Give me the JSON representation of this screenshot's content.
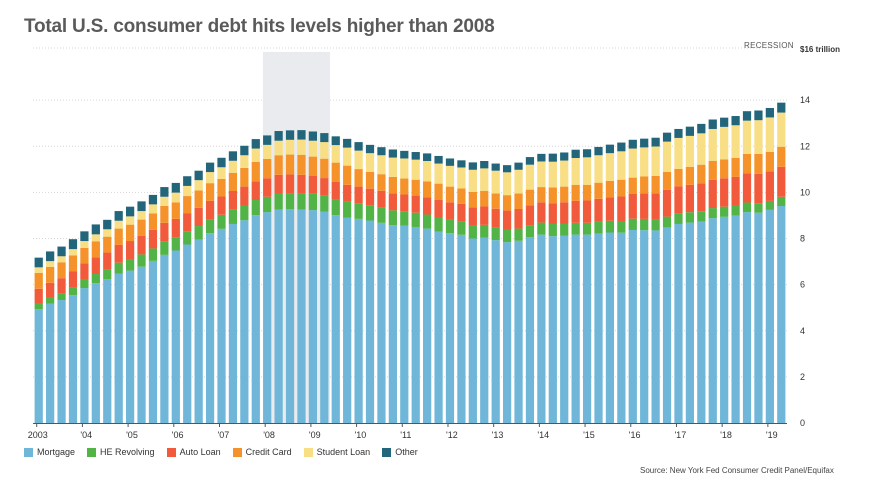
{
  "chart_data": {
    "type": "bar",
    "stacked": true,
    "title": "Total U.S. consumer debt hits levels higher than 2008",
    "recession_label": "RECESSION",
    "recession_range": [
      "2008Q1",
      "2009Q2"
    ],
    "y_unit_label": "$16 trillion",
    "ylim": [
      0,
      16
    ],
    "y_ticks": [
      0,
      2,
      4,
      6,
      8,
      10,
      12,
      14
    ],
    "grid": true,
    "legend_position": "bottom",
    "x_tick_labels": [
      "2003",
      "'04",
      "'05",
      "'06",
      "'07",
      "'08",
      "'09",
      "'10",
      "'11",
      "'12",
      "'13",
      "'14",
      "'15",
      "'16",
      "'17",
      "'18",
      "'19"
    ],
    "source": "Source: New York Fed Consumer Credit Panel/Equifax",
    "categories": [
      "2003Q1",
      "2003Q2",
      "2003Q3",
      "2003Q4",
      "2004Q1",
      "2004Q2",
      "2004Q3",
      "2004Q4",
      "2005Q1",
      "2005Q2",
      "2005Q3",
      "2005Q4",
      "2006Q1",
      "2006Q2",
      "2006Q3",
      "2006Q4",
      "2007Q1",
      "2007Q2",
      "2007Q3",
      "2007Q4",
      "2008Q1",
      "2008Q2",
      "2008Q3",
      "2008Q4",
      "2009Q1",
      "2009Q2",
      "2009Q3",
      "2009Q4",
      "2010Q1",
      "2010Q2",
      "2010Q3",
      "2010Q4",
      "2011Q1",
      "2011Q2",
      "2011Q3",
      "2011Q4",
      "2012Q1",
      "2012Q2",
      "2012Q3",
      "2012Q4",
      "2013Q1",
      "2013Q2",
      "2013Q3",
      "2013Q4",
      "2014Q1",
      "2014Q2",
      "2014Q3",
      "2014Q4",
      "2015Q1",
      "2015Q2",
      "2015Q3",
      "2015Q4",
      "2016Q1",
      "2016Q2",
      "2016Q3",
      "2016Q4",
      "2017Q1",
      "2017Q2",
      "2017Q3",
      "2017Q4",
      "2018Q1",
      "2018Q2",
      "2018Q3",
      "2018Q4",
      "2019Q1",
      "2019Q2"
    ],
    "series": [
      {
        "name": "Mortgage",
        "color": "#6fb6d8",
        "values": [
          4.94,
          5.18,
          5.33,
          5.54,
          5.85,
          6.06,
          6.23,
          6.48,
          6.61,
          6.78,
          7.03,
          7.29,
          7.48,
          7.74,
          7.95,
          8.23,
          8.42,
          8.63,
          8.79,
          9.01,
          9.14,
          9.26,
          9.27,
          9.26,
          9.23,
          9.17,
          9.01,
          8.91,
          8.85,
          8.78,
          8.68,
          8.58,
          8.56,
          8.5,
          8.43,
          8.3,
          8.23,
          8.16,
          8.0,
          8.03,
          7.93,
          7.84,
          7.9,
          8.05,
          8.17,
          8.1,
          8.13,
          8.17,
          8.17,
          8.21,
          8.26,
          8.25,
          8.37,
          8.36,
          8.35,
          8.48,
          8.63,
          8.69,
          8.74,
          8.88,
          8.94,
          9.0,
          9.14,
          9.12,
          9.24,
          9.41
        ]
      },
      {
        "name": "HE Revolving",
        "color": "#52b447",
        "values": [
          0.24,
          0.26,
          0.29,
          0.33,
          0.37,
          0.4,
          0.43,
          0.47,
          0.5,
          0.53,
          0.54,
          0.57,
          0.58,
          0.58,
          0.59,
          0.6,
          0.61,
          0.62,
          0.64,
          0.66,
          0.67,
          0.69,
          0.7,
          0.71,
          0.71,
          0.71,
          0.7,
          0.69,
          0.68,
          0.66,
          0.65,
          0.64,
          0.62,
          0.62,
          0.61,
          0.61,
          0.59,
          0.57,
          0.56,
          0.56,
          0.54,
          0.53,
          0.53,
          0.53,
          0.52,
          0.53,
          0.52,
          0.51,
          0.51,
          0.51,
          0.51,
          0.51,
          0.49,
          0.49,
          0.47,
          0.47,
          0.46,
          0.45,
          0.44,
          0.44,
          0.44,
          0.43,
          0.42,
          0.41,
          0.39,
          0.4
        ]
      },
      {
        "name": "Auto Loan",
        "color": "#f15a3a",
        "values": [
          0.64,
          0.64,
          0.66,
          0.7,
          0.7,
          0.72,
          0.73,
          0.77,
          0.78,
          0.8,
          0.81,
          0.82,
          0.79,
          0.78,
          0.79,
          0.8,
          0.79,
          0.81,
          0.82,
          0.81,
          0.8,
          0.81,
          0.81,
          0.79,
          0.77,
          0.74,
          0.74,
          0.73,
          0.72,
          0.72,
          0.74,
          0.74,
          0.73,
          0.74,
          0.75,
          0.76,
          0.75,
          0.77,
          0.79,
          0.8,
          0.82,
          0.84,
          0.85,
          0.86,
          0.88,
          0.9,
          0.92,
          0.95,
          0.97,
          1.0,
          1.02,
          1.06,
          1.07,
          1.11,
          1.14,
          1.16,
          1.17,
          1.19,
          1.21,
          1.22,
          1.23,
          1.24,
          1.27,
          1.27,
          1.28,
          1.3
        ]
      },
      {
        "name": "Credit Card",
        "color": "#f5922a",
        "values": [
          0.69,
          0.69,
          0.69,
          0.7,
          0.67,
          0.69,
          0.69,
          0.71,
          0.71,
          0.71,
          0.71,
          0.73,
          0.72,
          0.74,
          0.75,
          0.77,
          0.76,
          0.79,
          0.81,
          0.84,
          0.84,
          0.85,
          0.86,
          0.87,
          0.84,
          0.84,
          0.84,
          0.83,
          0.76,
          0.73,
          0.72,
          0.71,
          0.69,
          0.69,
          0.69,
          0.71,
          0.68,
          0.67,
          0.67,
          0.68,
          0.66,
          0.67,
          0.67,
          0.68,
          0.66,
          0.68,
          0.68,
          0.7,
          0.68,
          0.7,
          0.71,
          0.73,
          0.71,
          0.73,
          0.75,
          0.78,
          0.76,
          0.78,
          0.81,
          0.83,
          0.82,
          0.83,
          0.84,
          0.87,
          0.85,
          0.87
        ]
      },
      {
        "name": "Student Loan",
        "color": "#f8de84",
        "values": [
          0.24,
          0.25,
          0.26,
          0.27,
          0.3,
          0.31,
          0.32,
          0.34,
          0.36,
          0.37,
          0.39,
          0.4,
          0.42,
          0.44,
          0.45,
          0.48,
          0.51,
          0.52,
          0.55,
          0.58,
          0.61,
          0.63,
          0.64,
          0.66,
          0.69,
          0.72,
          0.76,
          0.78,
          0.8,
          0.81,
          0.82,
          0.84,
          0.87,
          0.87,
          0.88,
          0.87,
          0.9,
          0.91,
          0.96,
          0.97,
          0.99,
          0.99,
          1.03,
          1.08,
          1.11,
          1.12,
          1.13,
          1.16,
          1.19,
          1.19,
          1.2,
          1.23,
          1.26,
          1.26,
          1.28,
          1.31,
          1.34,
          1.34,
          1.36,
          1.38,
          1.41,
          1.41,
          1.44,
          1.46,
          1.49,
          1.48
        ]
      },
      {
        "name": "Other",
        "color": "#23657a",
        "values": [
          0.42,
          0.42,
          0.42,
          0.43,
          0.42,
          0.43,
          0.41,
          0.42,
          0.42,
          0.42,
          0.41,
          0.42,
          0.42,
          0.42,
          0.41,
          0.41,
          0.41,
          0.41,
          0.41,
          0.41,
          0.41,
          0.42,
          0.41,
          0.41,
          0.4,
          0.39,
          0.38,
          0.38,
          0.37,
          0.36,
          0.35,
          0.35,
          0.33,
          0.33,
          0.33,
          0.33,
          0.32,
          0.31,
          0.32,
          0.32,
          0.31,
          0.31,
          0.31,
          0.33,
          0.33,
          0.35,
          0.35,
          0.36,
          0.35,
          0.36,
          0.37,
          0.38,
          0.38,
          0.38,
          0.38,
          0.39,
          0.39,
          0.4,
          0.41,
          0.41,
          0.4,
          0.4,
          0.41,
          0.42,
          0.41,
          0.43
        ]
      }
    ]
  }
}
